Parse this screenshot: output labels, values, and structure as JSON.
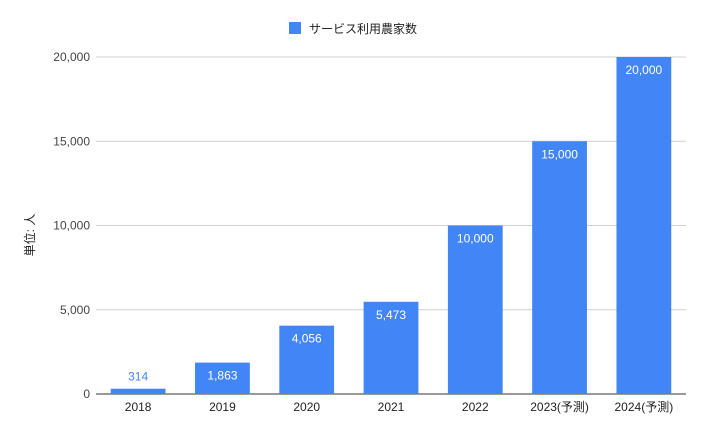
{
  "chart_data": {
    "type": "bar",
    "categories": [
      "2018",
      "2019",
      "2020",
      "2021",
      "2022",
      "2023(予測)",
      "2024(予測)"
    ],
    "series": [
      {
        "name": "サービス利用農家数",
        "values": [
          314,
          1863,
          4056,
          5473,
          10000,
          15000,
          20000
        ],
        "value_labels": [
          "314",
          "1,863",
          "4,056",
          "5,473",
          "10,000",
          "15,000",
          "20,000"
        ],
        "color": "#4285f4"
      }
    ],
    "ylabel": "単位: 人",
    "xlabel": "",
    "ylim": [
      0,
      20000
    ],
    "yticks": [
      0,
      5000,
      10000,
      15000,
      20000
    ],
    "ytick_labels": [
      "0",
      "5,000",
      "10,000",
      "15,000",
      "20,000"
    ],
    "legend_position": "top",
    "grid": true
  }
}
